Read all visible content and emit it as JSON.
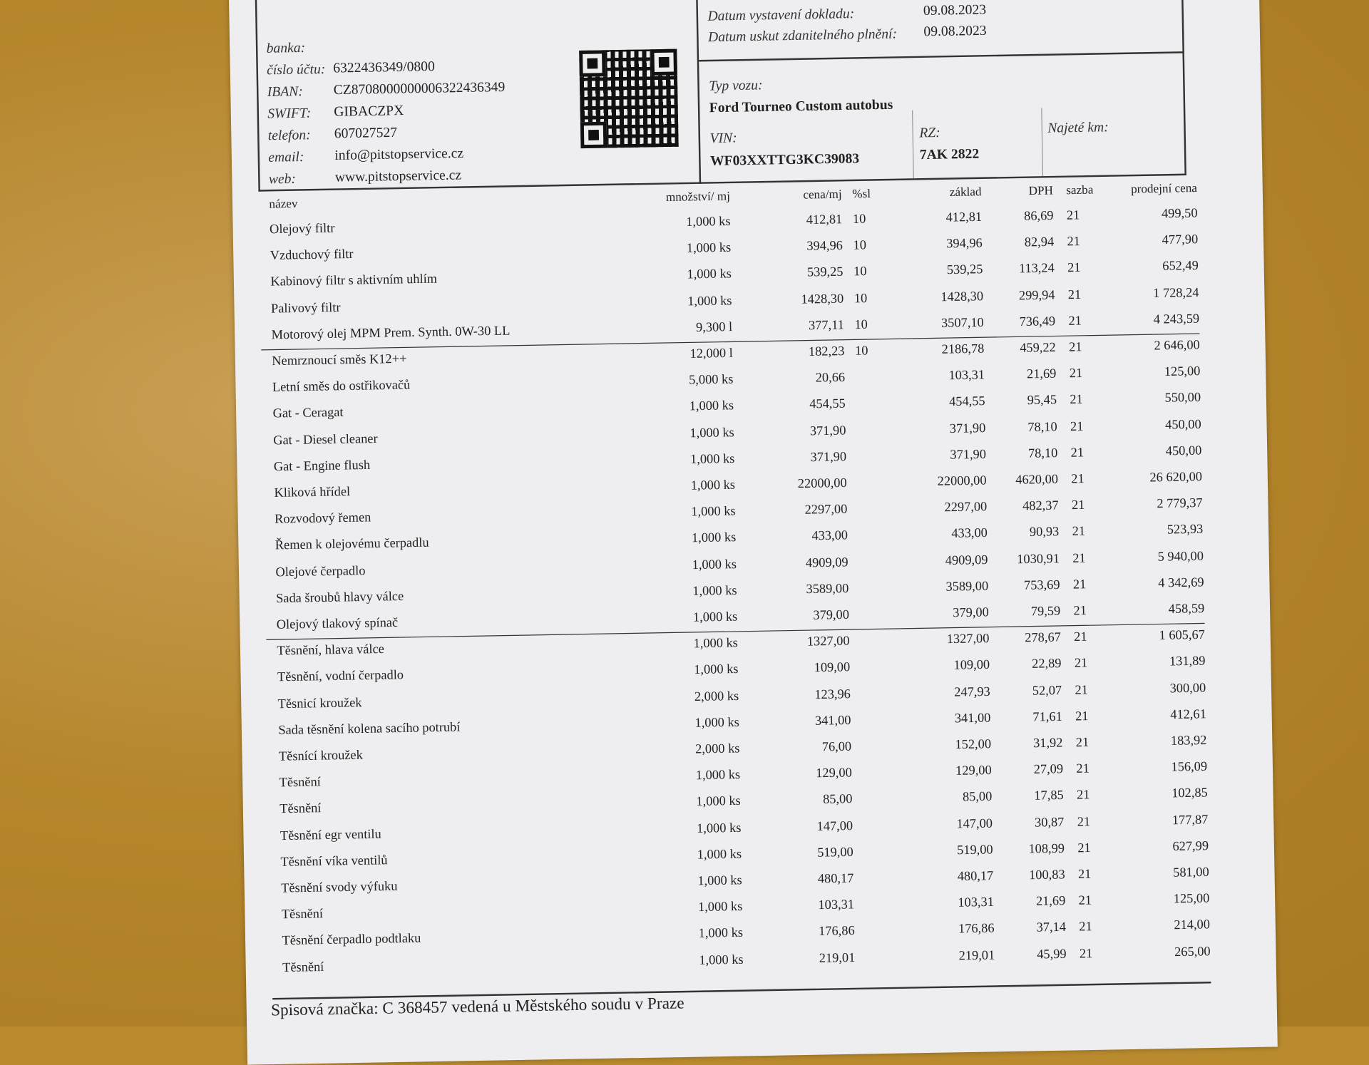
{
  "bank": {
    "bank_label": "banka:",
    "account_label": "číslo účtu:",
    "account": "6322436349/0800",
    "iban_label": "IBAN:",
    "iban": "CZ8708000000006322436349",
    "swift_label": "SWIFT:",
    "swift": "GIBACZPX",
    "phone_label": "telefon:",
    "phone": "607027527",
    "email_label": "email:",
    "email": "info@pitstopservice.cz",
    "web_label": "web:",
    "web": "www.pitstopservice.cz"
  },
  "dates": {
    "issue_label": "Datum vystavení dokladu:",
    "issue": "09.08.2023",
    "tax_label": "Datum uskut zdanitelného plnění:",
    "tax": "09.08.2023"
  },
  "vehicle": {
    "type_label": "Typ vozu:",
    "type": "Ford Tourneo Custom autobus",
    "vin_label": "VIN:",
    "vin": "WF03XXTTG3KC39083",
    "rz_label": "RZ:",
    "rz": "7AK 2822",
    "km_label": "Najeté km:"
  },
  "table": {
    "headers": [
      "název",
      "množství/ mj",
      "cena/mj",
      "%sl",
      "základ",
      "DPH",
      "sazba",
      "prodejní cena"
    ],
    "rows": [
      [
        "Olejový filtr",
        "1,000 ks",
        "412,81",
        "10",
        "412,81",
        "86,69",
        "21",
        "499,50"
      ],
      [
        "Vzduchový filtr",
        "1,000 ks",
        "394,96",
        "10",
        "394,96",
        "82,94",
        "21",
        "477,90"
      ],
      [
        "Kabinový filtr s aktivním uhlím",
        "1,000 ks",
        "539,25",
        "10",
        "539,25",
        "113,24",
        "21",
        "652,49"
      ],
      [
        "Palivový filtr",
        "1,000 ks",
        "1428,30",
        "10",
        "1428,30",
        "299,94",
        "21",
        "1 728,24"
      ],
      [
        "Motorový olej MPM Prem. Synth. 0W-30 LL",
        "9,300 l",
        "377,11",
        "10",
        "3507,10",
        "736,49",
        "21",
        "4 243,59"
      ],
      [
        "Nemrznoucí směs K12++",
        "12,000 l",
        "182,23",
        "10",
        "2186,78",
        "459,22",
        "21",
        "2 646,00"
      ],
      [
        "Letní směs do ostřikovačů",
        "5,000 ks",
        "20,66",
        "",
        "103,31",
        "21,69",
        "21",
        "125,00"
      ],
      [
        "Gat - Ceragat",
        "1,000 ks",
        "454,55",
        "",
        "454,55",
        "95,45",
        "21",
        "550,00"
      ],
      [
        "Gat - Diesel cleaner",
        "1,000 ks",
        "371,90",
        "",
        "371,90",
        "78,10",
        "21",
        "450,00"
      ],
      [
        "Gat - Engine flush",
        "1,000 ks",
        "371,90",
        "",
        "371,90",
        "78,10",
        "21",
        "450,00"
      ],
      [
        "Kliková hřídel",
        "1,000 ks",
        "22000,00",
        "",
        "22000,00",
        "4620,00",
        "21",
        "26 620,00"
      ],
      [
        "Rozvodový řemen",
        "1,000 ks",
        "2297,00",
        "",
        "2297,00",
        "482,37",
        "21",
        "2 779,37"
      ],
      [
        "Řemen k olejovému čerpadlu",
        "1,000 ks",
        "433,00",
        "",
        "433,00",
        "90,93",
        "21",
        "523,93"
      ],
      [
        "Olejové čerpadlo",
        "1,000 ks",
        "4909,09",
        "",
        "4909,09",
        "1030,91",
        "21",
        "5 940,00"
      ],
      [
        "Sada šroubů hlavy válce",
        "1,000 ks",
        "3589,00",
        "",
        "3589,00",
        "753,69",
        "21",
        "4 342,69"
      ],
      [
        "Olejový tlakový spínač",
        "1,000 ks",
        "379,00",
        "",
        "379,00",
        "79,59",
        "21",
        "458,59"
      ],
      [
        "Těsnění, hlava válce",
        "1,000 ks",
        "1327,00",
        "",
        "1327,00",
        "278,67",
        "21",
        "1 605,67"
      ],
      [
        "Těsnění, vodní čerpadlo",
        "1,000 ks",
        "109,00",
        "",
        "109,00",
        "22,89",
        "21",
        "131,89"
      ],
      [
        "Těsnicí kroužek",
        "2,000 ks",
        "123,96",
        "",
        "247,93",
        "52,07",
        "21",
        "300,00"
      ],
      [
        "Sada těsnění kolena sacího potrubí",
        "1,000 ks",
        "341,00",
        "",
        "341,00",
        "71,61",
        "21",
        "412,61"
      ],
      [
        "Těsnící kroužek",
        "2,000 ks",
        "76,00",
        "",
        "152,00",
        "31,92",
        "21",
        "183,92"
      ],
      [
        "Těsnění",
        "1,000 ks",
        "129,00",
        "",
        "129,00",
        "27,09",
        "21",
        "156,09"
      ],
      [
        "Těsnění",
        "1,000 ks",
        "85,00",
        "",
        "85,00",
        "17,85",
        "21",
        "102,85"
      ],
      [
        "Těsnění egr ventilu",
        "1,000 ks",
        "147,00",
        "",
        "147,00",
        "30,87",
        "21",
        "177,87"
      ],
      [
        "Těsnění víka ventilů",
        "1,000 ks",
        "519,00",
        "",
        "519,00",
        "108,99",
        "21",
        "627,99"
      ],
      [
        "Těsnění svody výfuku",
        "1,000 ks",
        "480,17",
        "",
        "480,17",
        "100,83",
        "21",
        "581,00"
      ],
      [
        "Těsnění",
        "1,000 ks",
        "103,31",
        "",
        "103,31",
        "21,69",
        "21",
        "125,00"
      ],
      [
        "Těsnění čerpadlo podtlaku",
        "1,000 ks",
        "176,86",
        "",
        "176,86",
        "37,14",
        "21",
        "214,00"
      ],
      [
        "Těsnění",
        "1,000 ks",
        "219,01",
        "",
        "219,01",
        "45,99",
        "21",
        "265,00"
      ]
    ]
  },
  "footer": {
    "registry": "Spisová značka: C 368457 vedená u Městského soudu v Praze"
  }
}
